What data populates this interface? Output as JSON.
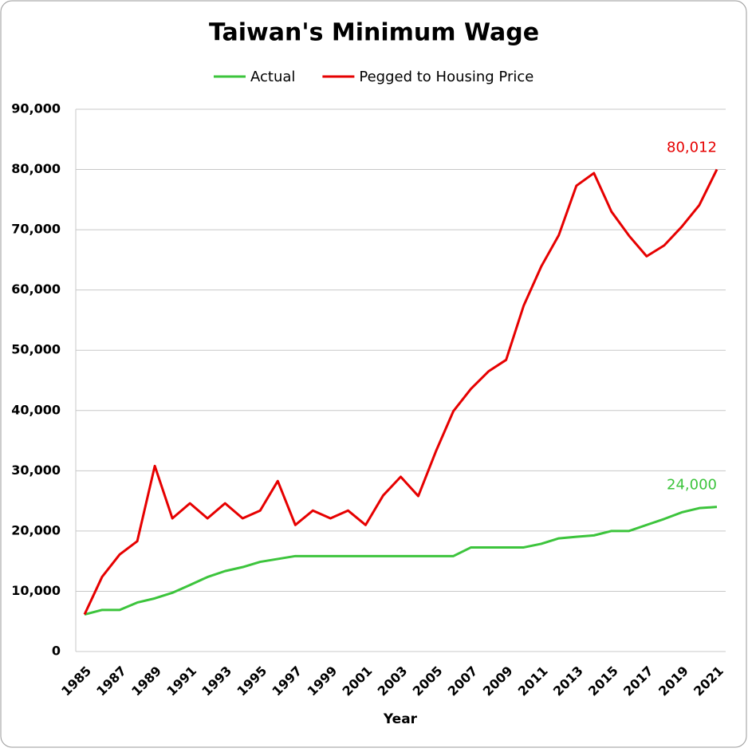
{
  "chart_data": {
    "type": "line",
    "title": "Taiwan's Minimum Wage",
    "x_label": "Year",
    "x": [
      1985,
      1986,
      1987,
      1988,
      1989,
      1990,
      1991,
      1992,
      1993,
      1994,
      1995,
      1996,
      1997,
      1998,
      1999,
      2000,
      2001,
      2002,
      2003,
      2004,
      2005,
      2006,
      2007,
      2008,
      2009,
      2010,
      2011,
      2012,
      2013,
      2014,
      2015,
      2016,
      2017,
      2018,
      2019,
      2020,
      2021
    ],
    "xlim": [
      1984.5,
      2021.5
    ],
    "xticks": [
      1985,
      1987,
      1989,
      1991,
      1993,
      1995,
      1997,
      1999,
      2001,
      2003,
      2005,
      2007,
      2009,
      2011,
      2013,
      2015,
      2017,
      2019,
      2021
    ],
    "ylim": [
      0,
      90000
    ],
    "yticks": [
      0,
      {
        "value": 10000,
        "label": "10,000"
      },
      {
        "value": 20000,
        "label": "20,000"
      },
      {
        "value": 30000,
        "label": "30,000"
      },
      {
        "value": 40000,
        "label": "40,000"
      },
      {
        "value": 50000,
        "label": "50,000"
      },
      {
        "value": 60000,
        "label": "60,000"
      },
      {
        "value": 70000,
        "label": "70,000"
      },
      {
        "value": 80000,
        "label": "80,000"
      },
      {
        "value": 90000,
        "label": "90,000"
      }
    ],
    "grid": true,
    "series": [
      {
        "name": "Actual",
        "color": "#3cc43c",
        "values": [
          6150,
          6900,
          6900,
          8130,
          8820,
          9750,
          11040,
          12365,
          13350,
          14010,
          14880,
          15360,
          15840,
          15840,
          15840,
          15840,
          15840,
          15840,
          15840,
          15840,
          15840,
          15840,
          17280,
          17280,
          17280,
          17280,
          17880,
          18780,
          19047,
          19273,
          20008,
          20008,
          21009,
          22000,
          23100,
          23800,
          24000
        ],
        "value_labels": [
          null,
          null,
          null,
          null,
          null,
          null,
          null,
          null,
          null,
          null,
          null,
          null,
          null,
          null,
          null,
          null,
          null,
          null,
          null,
          null,
          null,
          null,
          null,
          null,
          null,
          null,
          null,
          null,
          null,
          null,
          null,
          null,
          null,
          null,
          null,
          null,
          "24,000"
        ]
      },
      {
        "name": "Pegged to Housing Price",
        "color": "#e60000",
        "values": [
          6150,
          12400,
          16100,
          18300,
          30800,
          22100,
          24600,
          22100,
          24600,
          22100,
          23400,
          28300,
          21000,
          23400,
          22100,
          23400,
          21000,
          25900,
          29000,
          25800,
          33200,
          39900,
          43600,
          46500,
          48400,
          57400,
          63900,
          69100,
          77300,
          79400,
          73000,
          69000,
          65600,
          67400,
          70500,
          74100,
          80012
        ],
        "value_labels": [
          null,
          null,
          null,
          null,
          null,
          null,
          null,
          null,
          null,
          null,
          null,
          null,
          null,
          null,
          null,
          null,
          null,
          null,
          null,
          null,
          null,
          null,
          null,
          null,
          null,
          null,
          null,
          null,
          null,
          null,
          null,
          null,
          null,
          null,
          null,
          null,
          "80,012"
        ]
      }
    ]
  }
}
